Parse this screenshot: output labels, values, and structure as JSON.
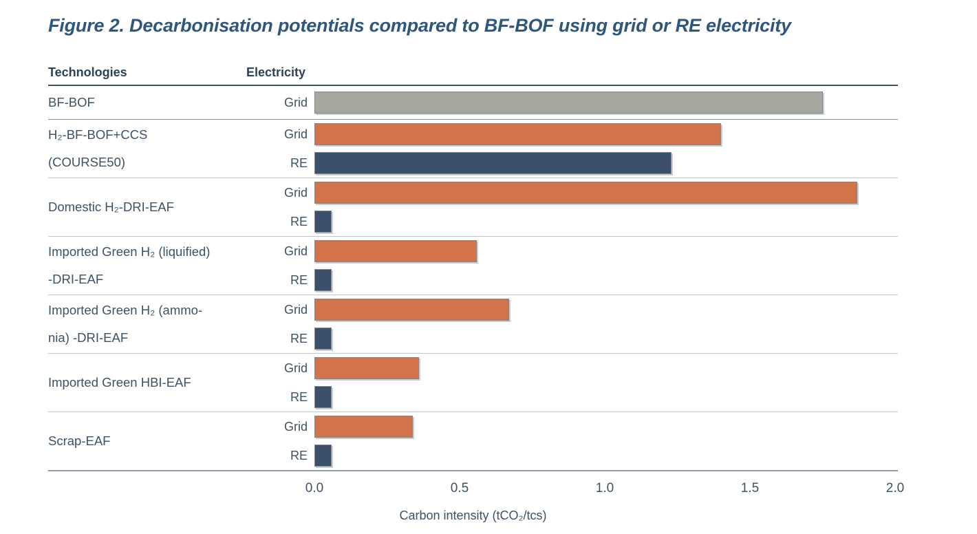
{
  "title": "Figure 2. Decarbonisation potentials compared to BF-BOF using grid or RE electricity",
  "columns": {
    "technologies": "Technologies",
    "electricity": "Electricity"
  },
  "colors": {
    "orange": "#d2734a",
    "navy": "#3d506b",
    "gray": "#a8a79f",
    "title_text": "#2d577e",
    "body_text": "#3e5266"
  },
  "chart_data": {
    "type": "bar",
    "orientation": "horizontal",
    "title": "Figure 2. Decarbonisation potentials compared to BF-BOF using grid or RE electricity",
    "xlabel": "Carbon intensity (tCO₂/tcs)",
    "xlim": [
      0,
      2
    ],
    "xticks": [
      "0.0",
      "0.5",
      "1.0",
      "1.5",
      "2.0"
    ],
    "grid": false,
    "legend_position": "none",
    "series_note": "Each technology has bars per electricity source; BF-BOF reference bar is gray, Grid bars orange, RE bars navy",
    "groups": [
      {
        "technology_lines": [
          "BF-BOF"
        ],
        "bars": [
          {
            "electricity": "Grid",
            "value": 1.75,
            "color": "gray"
          }
        ]
      },
      {
        "technology_lines": [
          "H₂-BF-BOF+CCS",
          "(COURSE50)"
        ],
        "bars": [
          {
            "electricity": "Grid",
            "value": 1.4,
            "color": "orange"
          },
          {
            "electricity": "RE",
            "value": 1.23,
            "color": "navy"
          }
        ]
      },
      {
        "technology_lines": [
          "Domestic H₂-DRI-EAF"
        ],
        "bars": [
          {
            "electricity": "Grid",
            "value": 1.87,
            "color": "orange"
          },
          {
            "electricity": "RE",
            "value": 0.06,
            "color": "navy"
          }
        ]
      },
      {
        "technology_lines": [
          "Imported Green H₂ (liquified)",
          "-DRI-EAF"
        ],
        "bars": [
          {
            "electricity": "Grid",
            "value": 0.56,
            "color": "orange"
          },
          {
            "electricity": "RE",
            "value": 0.06,
            "color": "navy"
          }
        ]
      },
      {
        "technology_lines": [
          "Imported Green H₂ (ammo-",
          "nia) -DRI-EAF"
        ],
        "bars": [
          {
            "electricity": "Grid",
            "value": 0.67,
            "color": "orange"
          },
          {
            "electricity": "RE",
            "value": 0.06,
            "color": "navy"
          }
        ]
      },
      {
        "technology_lines": [
          "Imported Green HBI-EAF"
        ],
        "bars": [
          {
            "electricity": "Grid",
            "value": 0.36,
            "color": "orange"
          },
          {
            "electricity": "RE",
            "value": 0.06,
            "color": "navy"
          }
        ]
      },
      {
        "technology_lines": [
          "Scrap-EAF"
        ],
        "bars": [
          {
            "electricity": "Grid",
            "value": 0.34,
            "color": "orange"
          },
          {
            "electricity": "RE",
            "value": 0.06,
            "color": "navy"
          }
        ]
      }
    ]
  }
}
